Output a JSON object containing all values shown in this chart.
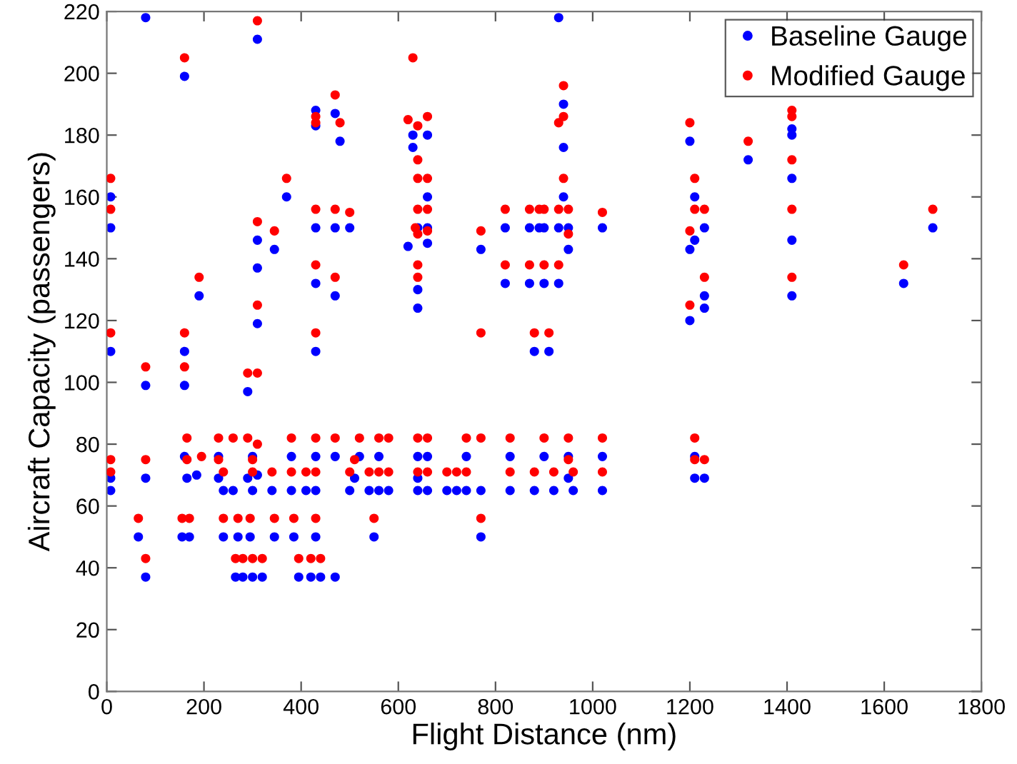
{
  "chart_data": {
    "type": "scatter",
    "xlabel": "Flight Distance (nm)",
    "ylabel": "Aircraft Capacity (passengers)",
    "xlim": [
      0,
      1800
    ],
    "ylim": [
      0,
      220
    ],
    "xticks": [
      0,
      200,
      400,
      600,
      800,
      1000,
      1200,
      1400,
      1600,
      1800
    ],
    "yticks": [
      0,
      20,
      40,
      60,
      80,
      100,
      120,
      140,
      160,
      180,
      200,
      220
    ],
    "grid": false,
    "legend": "top right",
    "marker": "circle",
    "series": [
      {
        "name": "Baseline Gauge",
        "color": "#0000ff",
        "x": [
          8,
          8,
          8,
          8,
          8,
          80,
          80,
          80,
          65,
          80,
          160,
          160,
          160,
          160,
          165,
          155,
          170,
          190,
          185,
          230,
          230,
          240,
          240,
          260,
          265,
          270,
          280,
          290,
          290,
          300,
          300,
          295,
          300,
          310,
          310,
          310,
          310,
          310,
          320,
          345,
          340,
          345,
          370,
          380,
          380,
          385,
          395,
          410,
          420,
          430,
          430,
          430,
          430,
          430,
          430,
          430,
          430,
          440,
          470,
          470,
          470,
          470,
          470,
          480,
          500,
          500,
          510,
          520,
          540,
          550,
          560,
          560,
          580,
          620,
          630,
          630,
          640,
          640,
          640,
          640,
          640,
          640,
          660,
          660,
          660,
          660,
          660,
          660,
          700,
          720,
          740,
          740,
          770,
          770,
          770,
          820,
          820,
          830,
          830,
          870,
          870,
          880,
          880,
          890,
          900,
          900,
          900,
          910,
          920,
          930,
          930,
          930,
          940,
          940,
          940,
          950,
          950,
          950,
          950,
          960,
          1020,
          1020,
          1020,
          1200,
          1200,
          1200,
          1210,
          1210,
          1210,
          1210,
          1230,
          1230,
          1230,
          1230,
          1320,
          1410,
          1410,
          1410,
          1410,
          1410,
          1640,
          1700
        ],
        "values": [
          160,
          150,
          110,
          69,
          65,
          218,
          99,
          69,
          50,
          37,
          199,
          110,
          99,
          76,
          69,
          50,
          50,
          128,
          70,
          76,
          69,
          65,
          50,
          65,
          37,
          50,
          37,
          97,
          69,
          76,
          65,
          50,
          37,
          211,
          146,
          137,
          119,
          70,
          37,
          143,
          65,
          50,
          160,
          76,
          65,
          50,
          37,
          65,
          37,
          188,
          183,
          150,
          132,
          110,
          76,
          65,
          50,
          37,
          187,
          150,
          128,
          76,
          37,
          178,
          150,
          65,
          69,
          76,
          65,
          50,
          76,
          65,
          65,
          144,
          180,
          176,
          150,
          130,
          124,
          69,
          65,
          76,
          180,
          160,
          150,
          145,
          76,
          65,
          65,
          65,
          76,
          65,
          143,
          65,
          50,
          150,
          132,
          76,
          65,
          150,
          132,
          65,
          110,
          150,
          150,
          132,
          76,
          110,
          65,
          218,
          150,
          132,
          176,
          160,
          190,
          150,
          143,
          69,
          76,
          65,
          150,
          76,
          65,
          178,
          143,
          120,
          69,
          76,
          160,
          146,
          150,
          128,
          124,
          69,
          172,
          182,
          180,
          166,
          146,
          128,
          132,
          150
        ]
      },
      {
        "name": "Modified Gauge",
        "color": "#ff0000",
        "x": [
          8,
          8,
          8,
          8,
          8,
          80,
          80,
          65,
          80,
          160,
          160,
          160,
          165,
          165,
          155,
          170,
          190,
          195,
          230,
          230,
          240,
          240,
          260,
          265,
          270,
          280,
          290,
          290,
          300,
          300,
          295,
          300,
          310,
          310,
          310,
          310,
          310,
          320,
          345,
          340,
          345,
          370,
          380,
          380,
          385,
          395,
          410,
          420,
          430,
          430,
          430,
          430,
          430,
          430,
          430,
          430,
          440,
          470,
          470,
          470,
          470,
          480,
          500,
          500,
          510,
          520,
          540,
          550,
          560,
          560,
          580,
          580,
          620,
          630,
          635,
          640,
          640,
          640,
          640,
          640,
          640,
          640,
          640,
          640,
          660,
          660,
          660,
          660,
          660,
          660,
          700,
          720,
          740,
          740,
          770,
          770,
          770,
          770,
          820,
          820,
          830,
          830,
          870,
          870,
          880,
          880,
          890,
          900,
          900,
          900,
          910,
          920,
          930,
          930,
          930,
          940,
          940,
          940,
          950,
          950,
          950,
          950,
          960,
          1020,
          1020,
          1020,
          1200,
          1200,
          1200,
          1210,
          1210,
          1210,
          1210,
          1230,
          1230,
          1230,
          1320,
          1410,
          1410,
          1410,
          1410,
          1410,
          1640,
          1700
        ],
        "values": [
          166,
          156,
          116,
          75,
          71,
          105,
          75,
          56,
          43,
          205,
          116,
          105,
          82,
          75,
          56,
          56,
          134,
          76,
          82,
          75,
          71,
          56,
          82,
          43,
          56,
          43,
          103,
          82,
          75,
          71,
          56,
          43,
          217,
          152,
          125,
          103,
          80,
          43,
          149,
          71,
          56,
          166,
          82,
          71,
          56,
          43,
          71,
          43,
          186,
          184,
          156,
          138,
          116,
          82,
          71,
          56,
          43,
          193,
          156,
          134,
          82,
          184,
          155,
          71,
          75,
          82,
          71,
          56,
          82,
          71,
          82,
          71,
          185,
          205,
          150,
          183,
          172,
          166,
          156,
          148,
          138,
          134,
          82,
          71,
          186,
          166,
          156,
          149,
          82,
          71,
          71,
          71,
          82,
          71,
          149,
          116,
          82,
          56,
          156,
          138,
          82,
          71,
          156,
          138,
          71,
          116,
          156,
          156,
          138,
          82,
          116,
          71,
          184,
          156,
          138,
          196,
          166,
          186,
          156,
          148,
          82,
          75,
          71,
          155,
          82,
          71,
          184,
          149,
          125,
          82,
          75,
          166,
          156,
          156,
          134,
          75,
          178,
          188,
          186,
          172,
          156,
          134,
          138,
          156
        ]
      }
    ]
  }
}
